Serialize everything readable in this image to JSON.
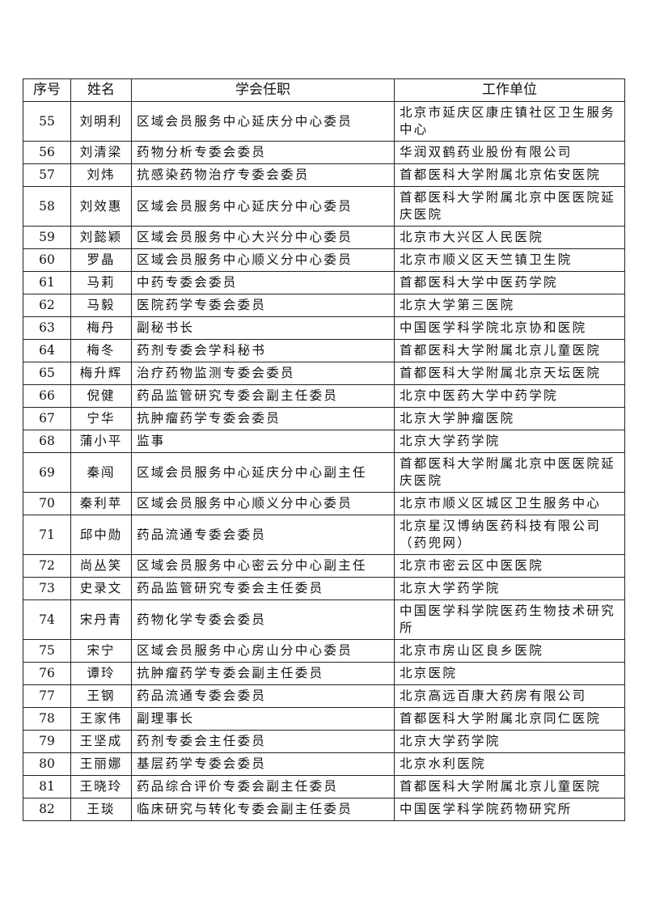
{
  "headers": [
    "序号",
    "姓名",
    "学会任职",
    "工作单位"
  ],
  "rows": [
    {
      "no": "55",
      "name": "刘明利",
      "role": "区域会员服务中心延庆分中心委员",
      "unit": "北京市延庆区康庄镇社区卫生服务中心"
    },
    {
      "no": "56",
      "name": "刘清梁",
      "role": "药物分析专委会委员",
      "unit": "华润双鹤药业股份有限公司"
    },
    {
      "no": "57",
      "name": "刘炜",
      "role": "抗感染药物治疗专委会委员",
      "unit": "首都医科大学附属北京佑安医院"
    },
    {
      "no": "58",
      "name": "刘效惠",
      "role": "区域会员服务中心延庆分中心委员",
      "unit": "首都医科大学附属北京中医医院延庆医院"
    },
    {
      "no": "59",
      "name": "刘懿颖",
      "role": "区域会员服务中心大兴分中心委员",
      "unit": "北京市大兴区人民医院"
    },
    {
      "no": "60",
      "name": "罗晶",
      "role": "区域会员服务中心顺义分中心委员",
      "unit": "北京市顺义区天竺镇卫生院"
    },
    {
      "no": "61",
      "name": "马莉",
      "role": "中药专委会委员",
      "unit": "首都医科大学中医药学院"
    },
    {
      "no": "62",
      "name": "马毅",
      "role": "医院药学专委会委员",
      "unit": "北京大学第三医院"
    },
    {
      "no": "63",
      "name": "梅丹",
      "role": "副秘书长",
      "unit": "中国医学科学院北京协和医院"
    },
    {
      "no": "64",
      "name": "梅冬",
      "role": "药剂专委会学科秘书",
      "unit": "首都医科大学附属北京儿童医院"
    },
    {
      "no": "65",
      "name": "梅升辉",
      "role": "治疗药物监测专委会委员",
      "unit": "首都医科大学附属北京天坛医院"
    },
    {
      "no": "66",
      "name": "倪健",
      "role": "药品监管研究专委会副主任委员",
      "unit": "北京中医药大学中药学院"
    },
    {
      "no": "67",
      "name": "宁华",
      "role": "抗肿瘤药学专委会委员",
      "unit": "北京大学肿瘤医院"
    },
    {
      "no": "68",
      "name": "蒲小平",
      "role": "监事",
      "unit": "北京大学药学院"
    },
    {
      "no": "69",
      "name": "秦闯",
      "role": "区域会员服务中心延庆分中心副主任",
      "unit": "首都医科大学附属北京中医医院延庆医院"
    },
    {
      "no": "70",
      "name": "秦利苹",
      "role": "区域会员服务中心顺义分中心委员",
      "unit": "北京市顺义区城区卫生服务中心"
    },
    {
      "no": "71",
      "name": "邱中勋",
      "role": "药品流通专委会委员",
      "unit": "北京星汉博纳医药科技有限公司（药兜网）"
    },
    {
      "no": "72",
      "name": "尚丛笑",
      "role": "区域会员服务中心密云分中心副主任",
      "unit": "北京市密云区中医医院"
    },
    {
      "no": "73",
      "name": "史录文",
      "role": "药品监管研究专委会主任委员",
      "unit": "北京大学药学院"
    },
    {
      "no": "74",
      "name": "宋丹青",
      "role": "药物化学专委会委员",
      "unit": "中国医学科学院医药生物技术研究所"
    },
    {
      "no": "75",
      "name": "宋宁",
      "role": "区域会员服务中心房山分中心委员",
      "unit": "北京市房山区良乡医院"
    },
    {
      "no": "76",
      "name": "谭玲",
      "role": "抗肿瘤药学专委会副主任委员",
      "unit": "北京医院"
    },
    {
      "no": "77",
      "name": "王钢",
      "role": "药品流通专委会委员",
      "unit": "北京高远百康大药房有限公司"
    },
    {
      "no": "78",
      "name": "王家伟",
      "role": "副理事长",
      "unit": "首都医科大学附属北京同仁医院"
    },
    {
      "no": "79",
      "name": "王坚成",
      "role": "药剂专委会主任委员",
      "unit": "北京大学药学院"
    },
    {
      "no": "80",
      "name": "王丽娜",
      "role": "基层药学专委会委员",
      "unit": "北京水利医院"
    },
    {
      "no": "81",
      "name": "王晓玲",
      "role": "药品综合评价专委会副主任委员",
      "unit": "首都医科大学附属北京儿童医院"
    },
    {
      "no": "82",
      "name": "王琰",
      "role": "临床研究与转化专委会副主任委员",
      "unit": "中国医学科学院药物研究所"
    }
  ]
}
